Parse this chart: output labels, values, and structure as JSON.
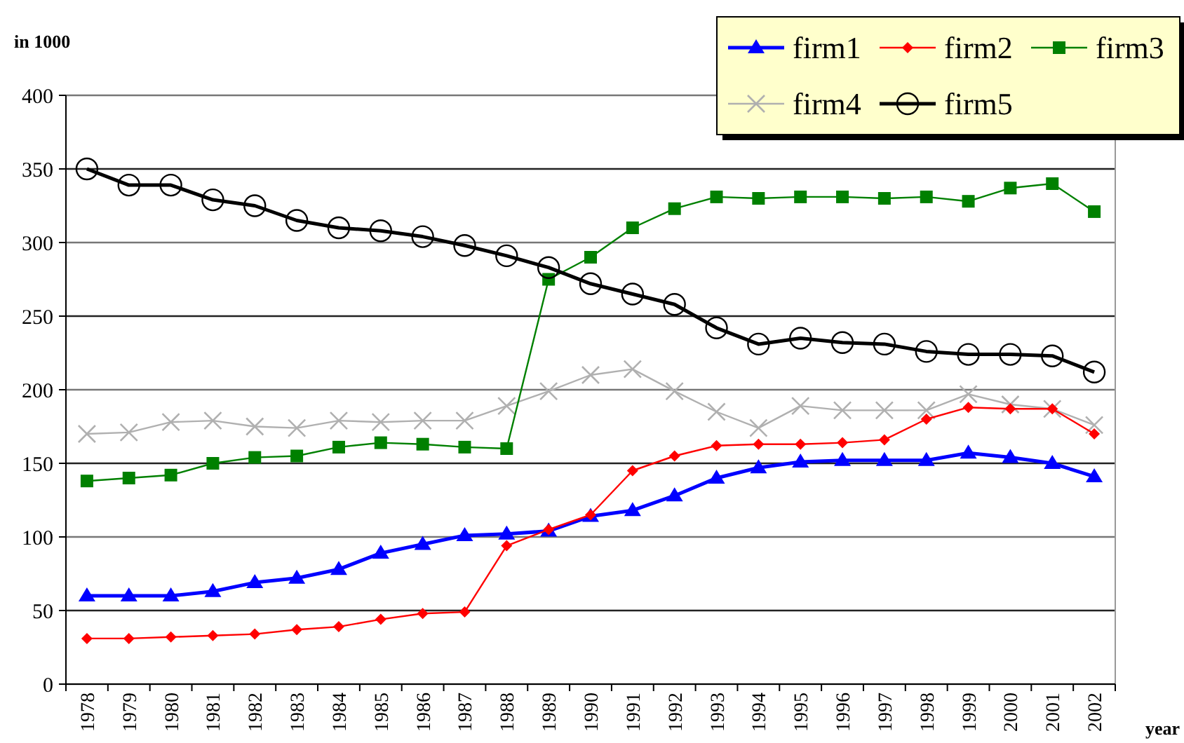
{
  "chart_data": {
    "type": "line",
    "ylabel": "in 1000",
    "xlabel": "year",
    "categories": [
      "1978",
      "1979",
      "1980",
      "1981",
      "1982",
      "1983",
      "1984",
      "1985",
      "1986",
      "1987",
      "1988",
      "1989",
      "1990",
      "1991",
      "1992",
      "1993",
      "1994",
      "1995",
      "1996",
      "1997",
      "1998",
      "1999",
      "2000",
      "2001",
      "2002"
    ],
    "ylim": [
      0,
      400
    ],
    "yticks": [
      0,
      50,
      100,
      150,
      200,
      250,
      300,
      350,
      400
    ],
    "grid": "y",
    "legend": "top right",
    "series": [
      {
        "name": "firm1",
        "color": "#0000ff",
        "marker": "triangle",
        "values": [
          60,
          60,
          60,
          63,
          69,
          72,
          78,
          89,
          95,
          101,
          102,
          104,
          114,
          118,
          128,
          140,
          147,
          151,
          152,
          152,
          152,
          157,
          154,
          150,
          141
        ]
      },
      {
        "name": "firm2",
        "color": "#ff0000",
        "marker": "diamond",
        "values": [
          31,
          31,
          32,
          33,
          34,
          37,
          39,
          44,
          48,
          49,
          94,
          105,
          115,
          145,
          155,
          162,
          163,
          163,
          164,
          166,
          180,
          188,
          187,
          187,
          170
        ]
      },
      {
        "name": "firm3",
        "color": "#008000",
        "marker": "square",
        "values": [
          138,
          140,
          142,
          150,
          154,
          155,
          161,
          164,
          163,
          161,
          160,
          275,
          290,
          310,
          323,
          331,
          330,
          331,
          331,
          330,
          331,
          328,
          337,
          340,
          321
        ]
      },
      {
        "name": "firm4",
        "color": "#b0b0b0",
        "marker": "cross",
        "values": [
          170,
          171,
          178,
          179,
          175,
          174,
          179,
          178,
          179,
          179,
          189,
          199,
          210,
          214,
          199,
          185,
          174,
          189,
          186,
          186,
          186,
          197,
          190,
          187,
          176
        ]
      },
      {
        "name": "firm5",
        "color": "#000000",
        "marker": "circle",
        "values": [
          350,
          339,
          339,
          329,
          325,
          315,
          310,
          308,
          304,
          298,
          291,
          283,
          272,
          265,
          258,
          242,
          231,
          235,
          232,
          231,
          226,
          224,
          224,
          223,
          212
        ]
      }
    ]
  }
}
